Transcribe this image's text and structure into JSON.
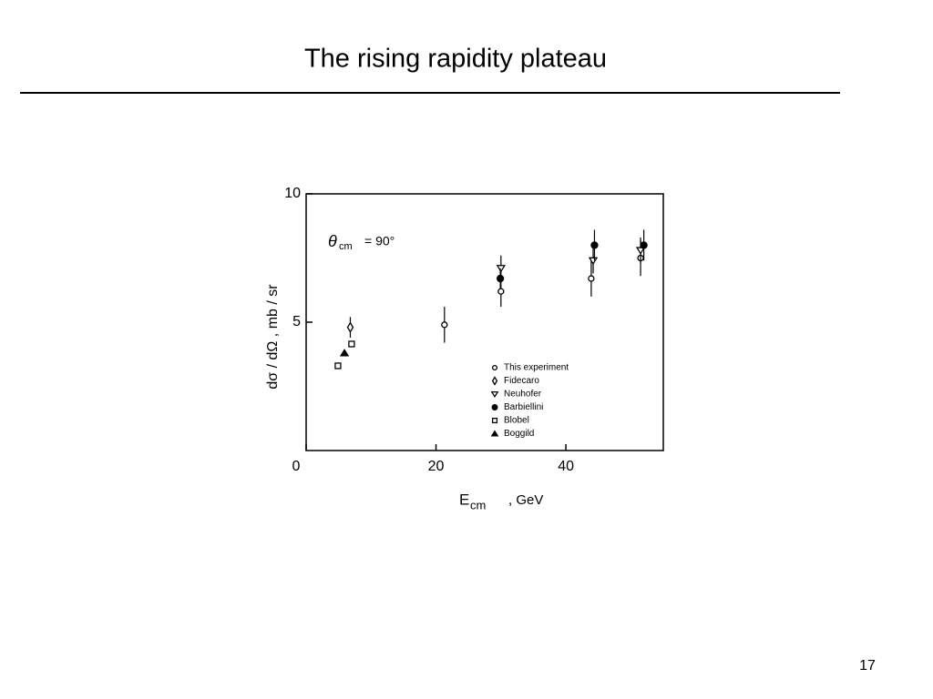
{
  "slide": {
    "title": "The rising rapidity plateau",
    "page_number": "17"
  },
  "chart_data": {
    "type": "scatter",
    "annotation": {
      "symbol": "θ",
      "subscript": "cm",
      "text": "= 90°"
    },
    "x_label": {
      "symbol": "E",
      "subscript": "cm",
      "text": ", GeV"
    },
    "y_label": "dσ / dΩ   ,   mb / sr",
    "xlim": [
      0,
      55
    ],
    "ylim": [
      0,
      10
    ],
    "xticks": [
      0,
      20,
      40
    ],
    "yticks": [
      5,
      10
    ],
    "series": [
      {
        "name": "This experiment",
        "marker": "open-circle",
        "color": "#000000",
        "x": [
          21.3,
          30.0,
          43.9,
          51.5
        ],
        "values": [
          4.9,
          6.2,
          6.7,
          7.5
        ],
        "errors": [
          0.7,
          0.6,
          0.7,
          0.7
        ]
      },
      {
        "name": "Fidecaro",
        "marker": "diamond",
        "color": "#000000",
        "x": [
          6.8
        ],
        "values": [
          4.8
        ],
        "errors": [
          0.4
        ]
      },
      {
        "name": "Neuhofer",
        "marker": "down-triangle",
        "color": "#000000",
        "x": [
          30.0,
          44.2,
          51.5
        ],
        "values": [
          7.1,
          7.4,
          7.8
        ],
        "errors": [
          0.5,
          0.5,
          0.5
        ]
      },
      {
        "name": "Barbiellini",
        "marker": "filled-circle",
        "color": "#000000",
        "x": [
          29.9,
          44.4,
          52.0
        ],
        "values": [
          6.7,
          8.0,
          8.0
        ],
        "errors": [
          0.4,
          0.6,
          0.6
        ]
      },
      {
        "name": "Blobel",
        "marker": "square",
        "color": "#000000",
        "x": [
          4.9,
          7.0
        ],
        "values": [
          3.3,
          4.15
        ],
        "errors": [
          null,
          null
        ]
      },
      {
        "name": "Boggild",
        "marker": "filled-triangle",
        "color": "#000000",
        "x": [
          5.9
        ],
        "values": [
          3.8
        ],
        "errors": [
          null
        ]
      }
    ]
  }
}
